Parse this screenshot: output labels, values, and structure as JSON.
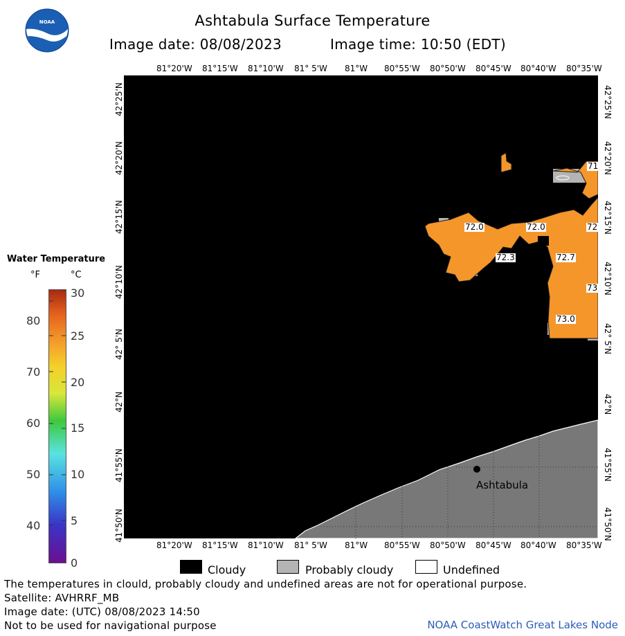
{
  "title": "Ashtabula Surface Temperature",
  "image_date_label": "Image date: 08/08/2023",
  "image_time_label": "Image time: 10:50 (EDT)",
  "longitude_labels": [
    "81°20'W",
    "81°15'W",
    "81°10'W",
    "81° 5'W",
    "81°W",
    "80°55'W",
    "80°50'W",
    "80°45'W",
    "80°40'W",
    "80°35'W"
  ],
  "latitude_labels": [
    "42°25'N",
    "42°20'N",
    "42°15'N",
    "42°10'N",
    "42° 5'N",
    "42°N",
    "41°55'N",
    "41°50'N"
  ],
  "legend": {
    "title": "Water Temperature",
    "unit_f": "°F",
    "unit_c": "°C",
    "fahrenheit_ticks": [
      "80",
      "70",
      "60",
      "50",
      "40"
    ],
    "celsius_ticks": [
      "30",
      "25",
      "20",
      "15",
      "10",
      "5",
      "0"
    ],
    "colors": [
      "#6b0f8f",
      "#3a35c8",
      "#2f8fe8",
      "#59e3e0",
      "#3ec93e",
      "#d8e63a",
      "#f4d02a",
      "#f3962a",
      "#e5621d",
      "#a82a12"
    ]
  },
  "map": {
    "colors": {
      "cloudy": "#000000",
      "probably_cloudy": "#b4b4b4",
      "land": "#787878",
      "warm_water": "#f5962a"
    },
    "temperature_labels": [
      "72.0",
      "72.0",
      "72",
      "71",
      "72.3",
      "72.7",
      "73",
      "73.0"
    ],
    "place_name": "Ashtabula"
  },
  "key": {
    "cloudy": "Cloudy",
    "probably_cloudy": "Probably cloudy",
    "undefined": "Undefined"
  },
  "notes": {
    "disclaimer": "The temperatures in clould, probably cloudy and undefined areas are not for operational purpose.",
    "satellite": "Satellite: AVHRRF_MB",
    "utc_date": "Image date: (UTC) 08/08/2023  14:50",
    "navigation": "Not to be used for navigational purpose"
  },
  "credit": "NOAA CoastWatch Great Lakes Node"
}
